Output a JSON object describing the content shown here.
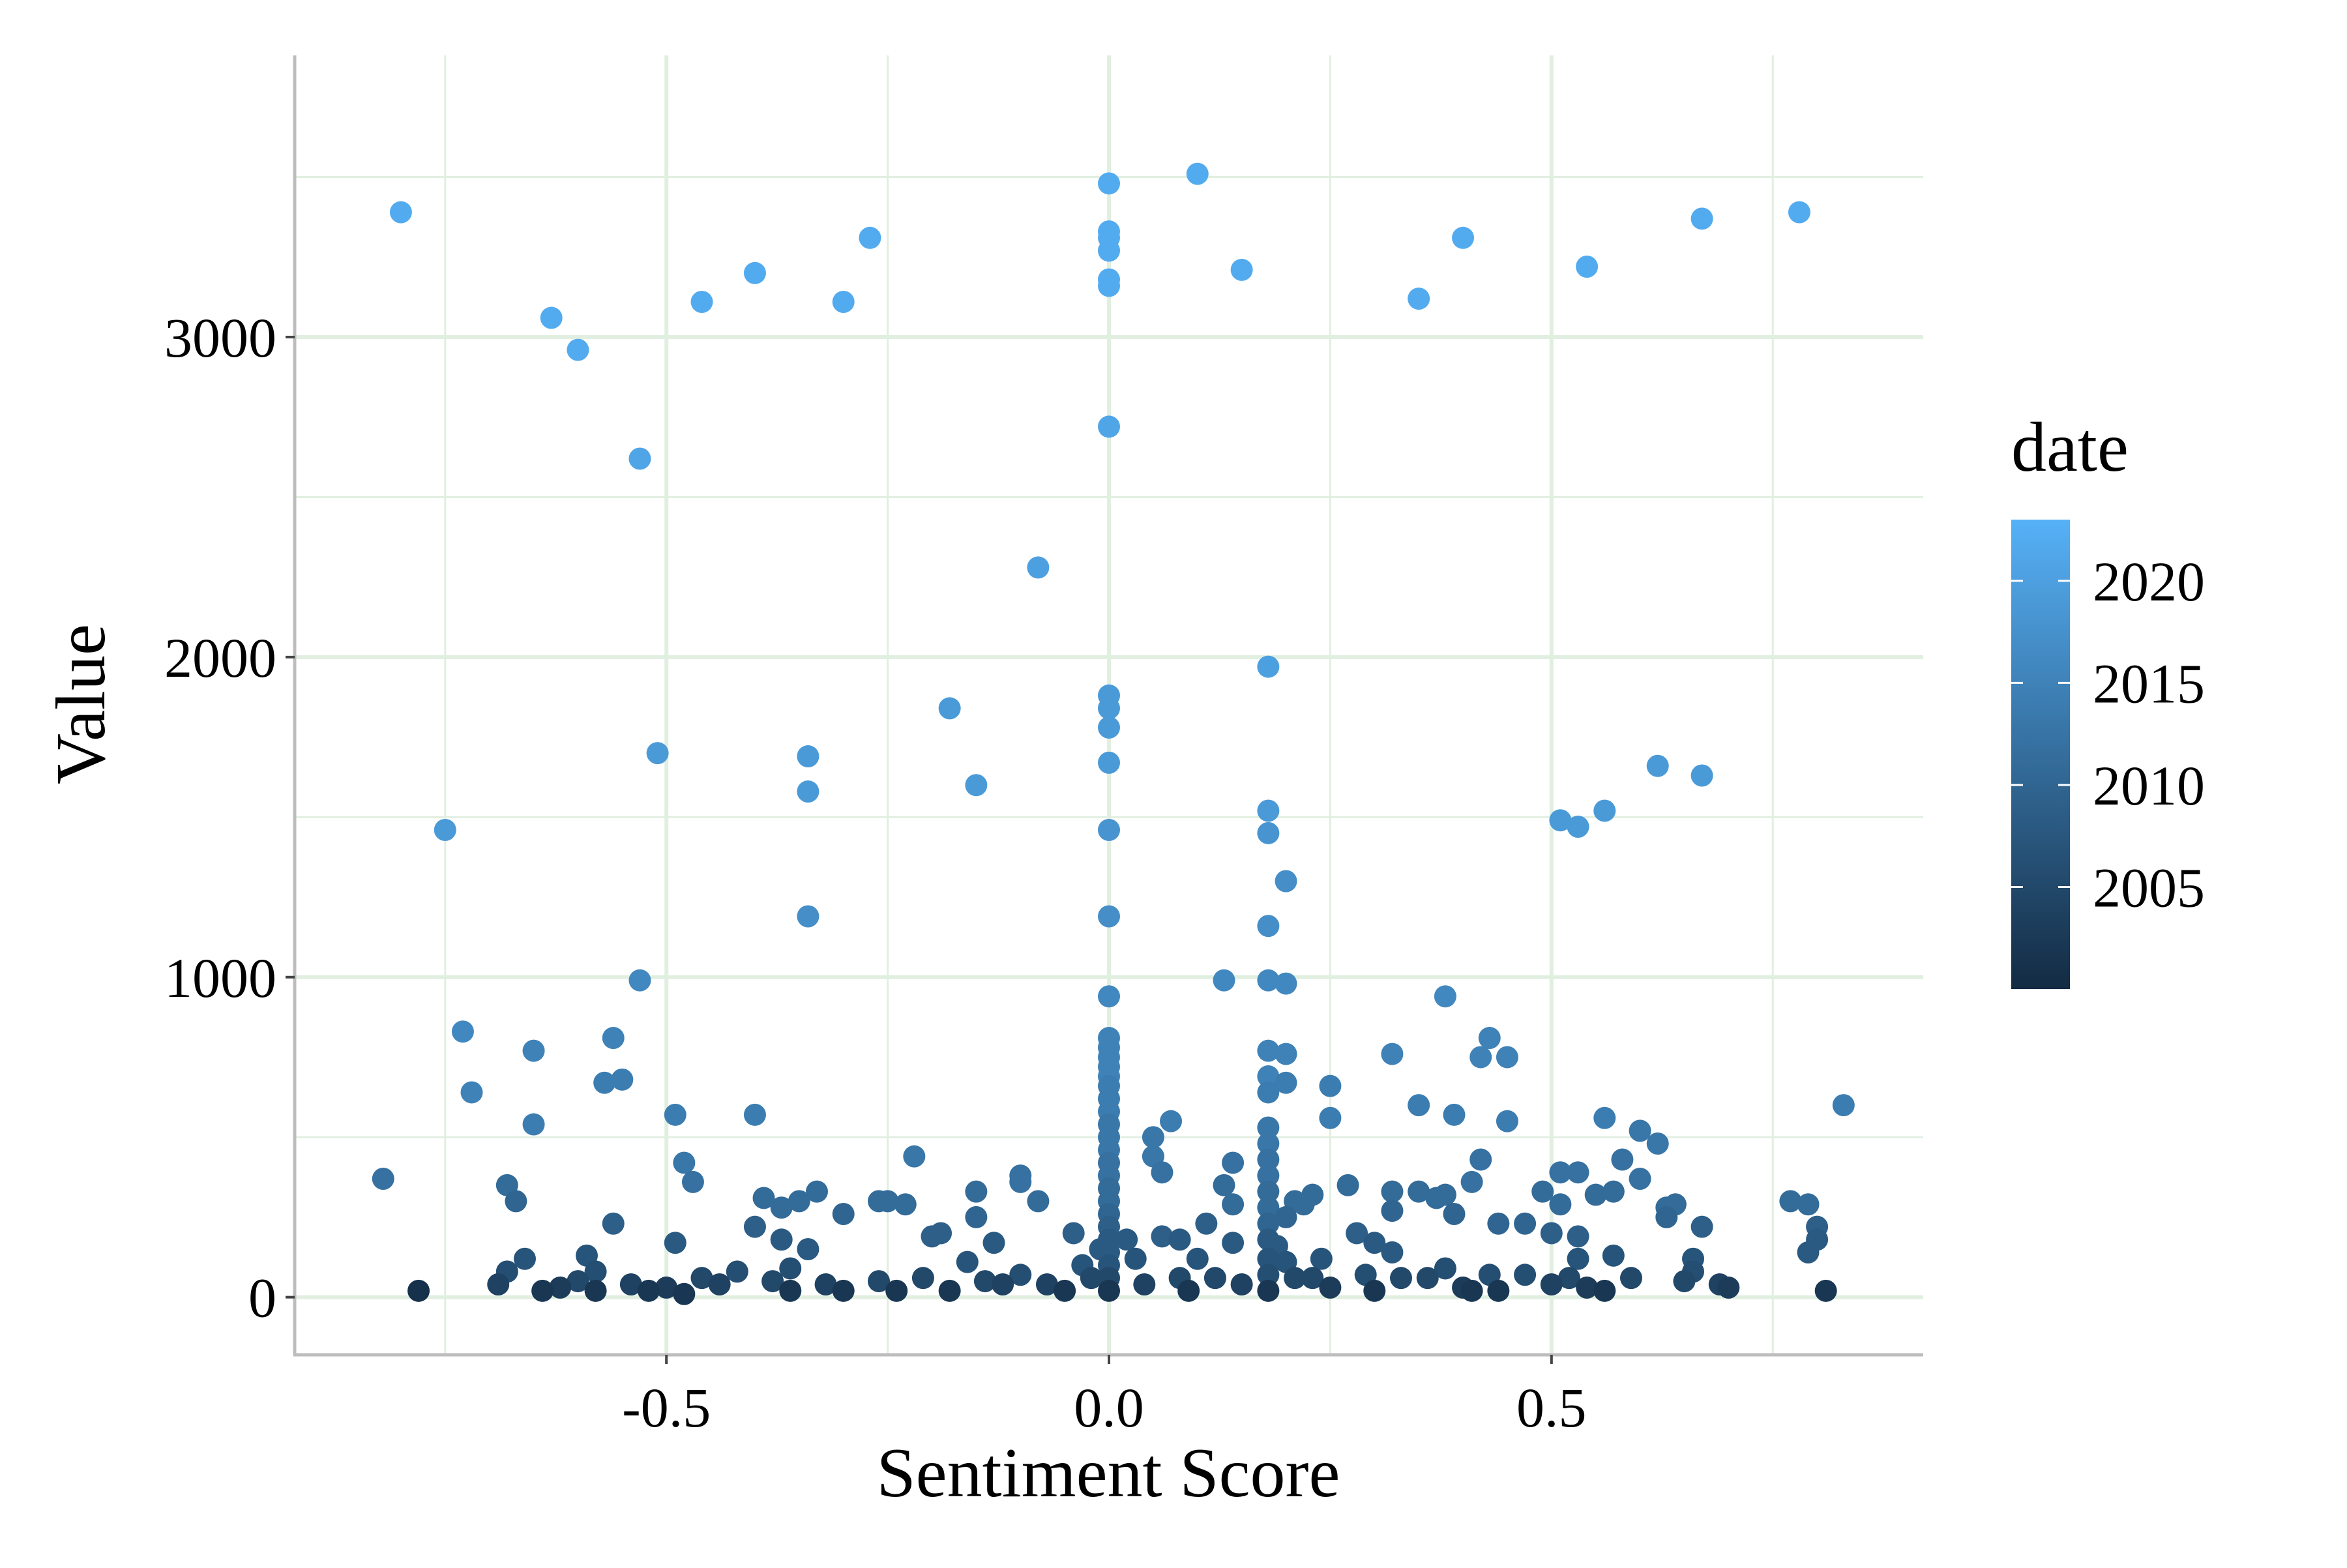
{
  "chart_data": {
    "type": "scatter",
    "xlabel": "Sentiment Score",
    "ylabel": "Value",
    "xlim": [
      -0.92,
      0.92
    ],
    "ylim": [
      -180,
      3880
    ],
    "x_ticks": [
      -0.5,
      0.0,
      0.5
    ],
    "x_tick_labels": [
      "-0.5",
      "0.0",
      "0.5"
    ],
    "x_minor": [
      -0.75,
      -0.25,
      0.25,
      0.75
    ],
    "y_ticks": [
      0,
      1000,
      2000,
      3000
    ],
    "y_tick_labels": [
      "0",
      "1000",
      "2000",
      "3000"
    ],
    "y_minor": [
      500,
      1500,
      2500,
      3500
    ],
    "grid": true,
    "legend": {
      "title": "date",
      "placement": "right",
      "range": [
        2000,
        2023
      ],
      "ticks": [
        2005,
        2010,
        2015,
        2020
      ],
      "tick_labels": [
        "2005",
        "2010",
        "2015",
        "2020"
      ],
      "color_low": "#132b43",
      "color_high": "#56b1f7"
    },
    "colors": {
      "grid": "#e1efe1",
      "axis": "#bdbdbd",
      "background": "#ffffff"
    },
    "points": [
      [
        -0.8,
        3390,
        2022
      ],
      [
        -0.75,
        1460,
        2019
      ],
      [
        -0.73,
        830,
        2016
      ],
      [
        -0.72,
        640,
        2015
      ],
      [
        -0.82,
        370,
        2012
      ],
      [
        -0.78,
        20,
        2001
      ],
      [
        -0.63,
        3060,
        2022
      ],
      [
        -0.6,
        2960,
        2022
      ],
      [
        -0.65,
        770,
        2015
      ],
      [
        -0.65,
        540,
        2014
      ],
      [
        -0.68,
        350,
        2011
      ],
      [
        -0.67,
        300,
        2010
      ],
      [
        -0.68,
        80,
        2006
      ],
      [
        -0.66,
        120,
        2007
      ],
      [
        -0.69,
        40,
        2004
      ],
      [
        -0.64,
        20,
        2002
      ],
      [
        -0.62,
        30,
        2003
      ],
      [
        -0.53,
        2620,
        2021
      ],
      [
        -0.51,
        1700,
        2019
      ],
      [
        -0.53,
        990,
        2016
      ],
      [
        -0.56,
        810,
        2015
      ],
      [
        -0.57,
        670,
        2014
      ],
      [
        -0.55,
        680,
        2014
      ],
      [
        -0.56,
        230,
        2009
      ],
      [
        -0.59,
        130,
        2007
      ],
      [
        -0.58,
        80,
        2006
      ],
      [
        -0.6,
        50,
        2005
      ],
      [
        -0.58,
        20,
        2002
      ],
      [
        -0.54,
        40,
        2004
      ],
      [
        -0.46,
        3110,
        2022
      ],
      [
        -0.4,
        3200,
        2022
      ],
      [
        -0.49,
        570,
        2014
      ],
      [
        -0.4,
        570,
        2014
      ],
      [
        -0.48,
        420,
        2013
      ],
      [
        -0.47,
        360,
        2012
      ],
      [
        -0.49,
        170,
        2008
      ],
      [
        -0.5,
        30,
        2003
      ],
      [
        -0.52,
        20,
        2002
      ],
      [
        -0.48,
        10,
        2002
      ],
      [
        -0.46,
        60,
        2005
      ],
      [
        -0.44,
        40,
        2004
      ],
      [
        -0.42,
        80,
        2006
      ],
      [
        -0.3,
        3110,
        2022
      ],
      [
        -0.27,
        3310,
        2022
      ],
      [
        -0.34,
        1690,
        2019
      ],
      [
        -0.34,
        1580,
        2019
      ],
      [
        -0.34,
        1190,
        2017
      ],
      [
        -0.39,
        310,
        2011
      ],
      [
        -0.37,
        280,
        2011
      ],
      [
        -0.35,
        300,
        2011
      ],
      [
        -0.33,
        330,
        2011
      ],
      [
        -0.4,
        220,
        2009
      ],
      [
        -0.37,
        180,
        2008
      ],
      [
        -0.34,
        150,
        2008
      ],
      [
        -0.3,
        260,
        2010
      ],
      [
        -0.36,
        90,
        2006
      ],
      [
        -0.38,
        50,
        2005
      ],
      [
        -0.36,
        20,
        2002
      ],
      [
        -0.32,
        40,
        2004
      ],
      [
        -0.3,
        20,
        2002
      ],
      [
        -0.18,
        1840,
        2019
      ],
      [
        -0.15,
        1600,
        2019
      ],
      [
        -0.08,
        2280,
        2020
      ],
      [
        -0.26,
        300,
        2011
      ],
      [
        -0.25,
        300,
        2011
      ],
      [
        -0.22,
        440,
        2013
      ],
      [
        -0.23,
        290,
        2011
      ],
      [
        -0.2,
        190,
        2009
      ],
      [
        -0.19,
        200,
        2009
      ],
      [
        -0.15,
        330,
        2011
      ],
      [
        -0.15,
        250,
        2010
      ],
      [
        -0.1,
        380,
        2012
      ],
      [
        -0.1,
        360,
        2012
      ],
      [
        -0.08,
        300,
        2011
      ],
      [
        -0.13,
        170,
        2008
      ],
      [
        -0.16,
        110,
        2007
      ],
      [
        -0.26,
        50,
        2005
      ],
      [
        -0.24,
        20,
        2002
      ],
      [
        -0.21,
        60,
        2005
      ],
      [
        -0.18,
        20,
        2002
      ],
      [
        -0.14,
        50,
        2005
      ],
      [
        -0.12,
        40,
        2004
      ],
      [
        -0.1,
        70,
        2006
      ],
      [
        -0.07,
        40,
        2004
      ],
      [
        -0.05,
        20,
        2002
      ],
      [
        -0.04,
        200,
        2009
      ],
      [
        -0.03,
        100,
        2007
      ],
      [
        -0.02,
        60,
        2005
      ],
      [
        -0.01,
        150,
        2008
      ],
      [
        0.0,
        3480,
        2022
      ],
      [
        0.0,
        3330,
        2022
      ],
      [
        0.0,
        3310,
        2022
      ],
      [
        0.0,
        3270,
        2022
      ],
      [
        0.0,
        3180,
        2022
      ],
      [
        0.0,
        3160,
        2022
      ],
      [
        0.0,
        2720,
        2021
      ],
      [
        0.0,
        1880,
        2019
      ],
      [
        0.0,
        1840,
        2019
      ],
      [
        0.0,
        1780,
        2019
      ],
      [
        0.0,
        1670,
        2019
      ],
      [
        0.0,
        1460,
        2018
      ],
      [
        0.0,
        1190,
        2017
      ],
      [
        0.0,
        940,
        2016
      ],
      [
        0.0,
        810,
        2015
      ],
      [
        0.0,
        780,
        2015
      ],
      [
        0.0,
        750,
        2015
      ],
      [
        0.0,
        720,
        2015
      ],
      [
        0.0,
        690,
        2015
      ],
      [
        0.0,
        660,
        2014
      ],
      [
        0.0,
        620,
        2014
      ],
      [
        0.0,
        580,
        2014
      ],
      [
        0.0,
        540,
        2013
      ],
      [
        0.0,
        500,
        2013
      ],
      [
        0.0,
        460,
        2013
      ],
      [
        0.0,
        420,
        2012
      ],
      [
        0.0,
        380,
        2012
      ],
      [
        0.0,
        340,
        2011
      ],
      [
        0.0,
        300,
        2011
      ],
      [
        0.0,
        260,
        2010
      ],
      [
        0.0,
        220,
        2009
      ],
      [
        0.0,
        180,
        2008
      ],
      [
        0.0,
        140,
        2008
      ],
      [
        0.0,
        100,
        2007
      ],
      [
        0.0,
        60,
        2005
      ],
      [
        0.0,
        20,
        2002
      ],
      [
        0.02,
        180,
        2008
      ],
      [
        0.03,
        120,
        2007
      ],
      [
        0.04,
        40,
        2004
      ],
      [
        0.05,
        500,
        2013
      ],
      [
        0.05,
        440,
        2013
      ],
      [
        0.06,
        390,
        2012
      ],
      [
        0.07,
        550,
        2014
      ],
      [
        0.06,
        190,
        2009
      ],
      [
        0.08,
        180,
        2008
      ],
      [
        0.08,
        60,
        2005
      ],
      [
        0.09,
        20,
        2002
      ],
      [
        0.1,
        120,
        2007
      ],
      [
        0.1,
        3510,
        2022
      ],
      [
        0.15,
        3210,
        2022
      ],
      [
        0.13,
        990,
        2016
      ],
      [
        0.11,
        230,
        2009
      ],
      [
        0.12,
        60,
        2005
      ],
      [
        0.13,
        350,
        2011
      ],
      [
        0.14,
        420,
        2012
      ],
      [
        0.14,
        290,
        2011
      ],
      [
        0.14,
        170,
        2008
      ],
      [
        0.15,
        40,
        2004
      ],
      [
        0.18,
        1970,
        2020
      ],
      [
        0.18,
        1520,
        2019
      ],
      [
        0.18,
        1450,
        2018
      ],
      [
        0.18,
        1160,
        2017
      ],
      [
        0.18,
        990,
        2016
      ],
      [
        0.18,
        770,
        2015
      ],
      [
        0.18,
        690,
        2015
      ],
      [
        0.18,
        640,
        2014
      ],
      [
        0.18,
        530,
        2013
      ],
      [
        0.18,
        480,
        2013
      ],
      [
        0.18,
        430,
        2012
      ],
      [
        0.18,
        380,
        2012
      ],
      [
        0.18,
        330,
        2011
      ],
      [
        0.18,
        280,
        2011
      ],
      [
        0.18,
        230,
        2010
      ],
      [
        0.18,
        180,
        2008
      ],
      [
        0.18,
        120,
        2007
      ],
      [
        0.18,
        70,
        2006
      ],
      [
        0.18,
        20,
        2002
      ],
      [
        0.2,
        1300,
        2017
      ],
      [
        0.2,
        980,
        2016
      ],
      [
        0.2,
        760,
        2015
      ],
      [
        0.2,
        670,
        2014
      ],
      [
        0.21,
        300,
        2011
      ],
      [
        0.2,
        250,
        2010
      ],
      [
        0.19,
        160,
        2008
      ],
      [
        0.2,
        110,
        2007
      ],
      [
        0.21,
        60,
        2005
      ],
      [
        0.22,
        290,
        2011
      ],
      [
        0.23,
        320,
        2011
      ],
      [
        0.25,
        660,
        2014
      ],
      [
        0.25,
        560,
        2014
      ],
      [
        0.24,
        120,
        2007
      ],
      [
        0.23,
        60,
        2005
      ],
      [
        0.25,
        30,
        2003
      ],
      [
        0.27,
        350,
        2011
      ],
      [
        0.28,
        200,
        2009
      ],
      [
        0.3,
        170,
        2008
      ],
      [
        0.29,
        70,
        2006
      ],
      [
        0.3,
        20,
        2002
      ],
      [
        0.32,
        760,
        2015
      ],
      [
        0.32,
        330,
        2011
      ],
      [
        0.32,
        270,
        2010
      ],
      [
        0.32,
        140,
        2008
      ],
      [
        0.33,
        60,
        2005
      ],
      [
        0.35,
        3120,
        2022
      ],
      [
        0.4,
        3310,
        2022
      ],
      [
        0.38,
        940,
        2016
      ],
      [
        0.35,
        600,
        2014
      ],
      [
        0.39,
        570,
        2014
      ],
      [
        0.35,
        330,
        2011
      ],
      [
        0.37,
        310,
        2011
      ],
      [
        0.38,
        320,
        2011
      ],
      [
        0.39,
        260,
        2010
      ],
      [
        0.36,
        60,
        2005
      ],
      [
        0.38,
        90,
        2006
      ],
      [
        0.4,
        30,
        2003
      ],
      [
        0.41,
        20,
        2002
      ],
      [
        0.43,
        810,
        2015
      ],
      [
        0.42,
        750,
        2015
      ],
      [
        0.45,
        750,
        2015
      ],
      [
        0.45,
        550,
        2014
      ],
      [
        0.42,
        430,
        2012
      ],
      [
        0.41,
        360,
        2012
      ],
      [
        0.44,
        230,
        2010
      ],
      [
        0.43,
        70,
        2006
      ],
      [
        0.44,
        20,
        2002
      ],
      [
        0.47,
        230,
        2010
      ],
      [
        0.47,
        70,
        2006
      ],
      [
        0.51,
        1490,
        2019
      ],
      [
        0.53,
        1470,
        2019
      ],
      [
        0.54,
        3220,
        2022
      ],
      [
        0.56,
        1520,
        2019
      ],
      [
        0.51,
        390,
        2012
      ],
      [
        0.53,
        390,
        2012
      ],
      [
        0.49,
        330,
        2011
      ],
      [
        0.5,
        200,
        2009
      ],
      [
        0.51,
        290,
        2011
      ],
      [
        0.53,
        190,
        2009
      ],
      [
        0.53,
        120,
        2007
      ],
      [
        0.52,
        60,
        2005
      ],
      [
        0.5,
        40,
        2004
      ],
      [
        0.54,
        30,
        2003
      ],
      [
        0.56,
        560,
        2014
      ],
      [
        0.55,
        320,
        2011
      ],
      [
        0.57,
        330,
        2011
      ],
      [
        0.58,
        430,
        2012
      ],
      [
        0.6,
        520,
        2013
      ],
      [
        0.6,
        370,
        2012
      ],
      [
        0.57,
        130,
        2007
      ],
      [
        0.59,
        60,
        2005
      ],
      [
        0.56,
        20,
        2002
      ],
      [
        0.62,
        1660,
        2019
      ],
      [
        0.67,
        1630,
        2019
      ],
      [
        0.67,
        3370,
        2022
      ],
      [
        0.62,
        480,
        2013
      ],
      [
        0.63,
        280,
        2011
      ],
      [
        0.64,
        290,
        2011
      ],
      [
        0.63,
        250,
        2010
      ],
      [
        0.67,
        220,
        2009
      ],
      [
        0.66,
        120,
        2007
      ],
      [
        0.65,
        50,
        2005
      ],
      [
        0.66,
        80,
        2006
      ],
      [
        0.69,
        40,
        2004
      ],
      [
        0.7,
        30,
        2003
      ],
      [
        0.78,
        3390,
        2022
      ],
      [
        0.77,
        300,
        2011
      ],
      [
        0.79,
        290,
        2011
      ],
      [
        0.8,
        220,
        2009
      ],
      [
        0.8,
        180,
        2008
      ],
      [
        0.79,
        140,
        2008
      ],
      [
        0.81,
        20,
        2002
      ],
      [
        0.83,
        600,
        2014
      ]
    ]
  }
}
